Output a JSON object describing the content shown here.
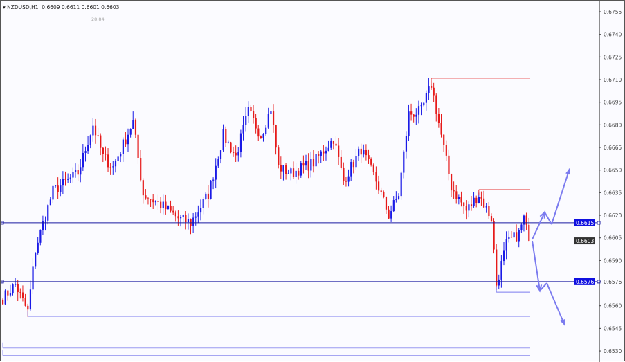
{
  "header": {
    "symbol": "NZDUSD,H1",
    "ohlc": "0.6609 0.6611 0.6601 0.6603",
    "indicator_value": "28.84"
  },
  "chart_data": {
    "type": "candlestick",
    "symbol": "NZDUSD",
    "timeframe": "H1",
    "ylim": [
      0.6525,
      0.6765
    ],
    "y_ticks": [
      "0.6755",
      "0.6740",
      "0.6725",
      "0.6710",
      "0.6695",
      "0.6680",
      "0.6665",
      "0.6650",
      "0.6635",
      "0.6620",
      "0.6605",
      "0.6590",
      "0.6576",
      "0.6560",
      "0.6545",
      "0.6530"
    ],
    "bar_count": 211,
    "close_path_by_bar": [
      [
        0,
        0.6565
      ],
      [
        5,
        0.6574
      ],
      [
        10,
        0.6556
      ],
      [
        13,
        0.6597
      ],
      [
        17,
        0.662
      ],
      [
        20,
        0.6636
      ],
      [
        30,
        0.6648
      ],
      [
        36,
        0.668
      ],
      [
        40,
        0.6659
      ],
      [
        44,
        0.6652
      ],
      [
        52,
        0.6682
      ],
      [
        56,
        0.6634
      ],
      [
        63,
        0.6627
      ],
      [
        70,
        0.6618
      ],
      [
        75,
        0.6615
      ],
      [
        82,
        0.6634
      ],
      [
        88,
        0.6673
      ],
      [
        93,
        0.6659
      ],
      [
        98,
        0.6689
      ],
      [
        103,
        0.6673
      ],
      [
        107,
        0.6691
      ],
      [
        110,
        0.6652
      ],
      [
        115,
        0.6648
      ],
      [
        124,
        0.6655
      ],
      [
        132,
        0.6671
      ],
      [
        136,
        0.6643
      ],
      [
        143,
        0.6664
      ],
      [
        149,
        0.6643
      ],
      [
        154,
        0.662
      ],
      [
        158,
        0.6634
      ],
      [
        162,
        0.6687
      ],
      [
        167,
        0.6689
      ],
      [
        171,
        0.6707
      ],
      [
        175,
        0.6673
      ],
      [
        179,
        0.6639
      ],
      [
        185,
        0.6623
      ],
      [
        190,
        0.6634
      ],
      [
        195,
        0.6618
      ],
      [
        197,
        0.6574
      ],
      [
        201,
        0.6601
      ],
      [
        206,
        0.6608
      ],
      [
        208,
        0.6618
      ],
      [
        210,
        0.6603
      ]
    ],
    "bull_color": "#1a1ae6",
    "bear_color": "#e61a1a",
    "current_price": {
      "label": "0.6603",
      "value": 0.6603,
      "color": "#333333"
    },
    "levels": [
      {
        "label": "0.6615",
        "value": 0.6615,
        "color": "#1a1aa0",
        "labeled": true
      },
      {
        "label": "0.6576",
        "value": 0.6576,
        "color": "#1a1aa0",
        "labeled": true
      },
      {
        "value": 0.6711,
        "color": "#e63030",
        "from_bar": 171
      },
      {
        "value": 0.6637,
        "color": "#e63030",
        "from_bar": 190
      },
      {
        "value": 0.6569,
        "color": "#7b7bef",
        "from_bar": 197
      },
      {
        "value": 0.6553,
        "color": "#7b7bef",
        "from_bar": 10
      },
      {
        "value": 0.6532,
        "color": "#9a9af0",
        "from_bar": 0
      },
      {
        "value": 0.6527,
        "color": "#9a9af0",
        "from_bar": 0
      }
    ],
    "scenario_arrows": {
      "color": "#7b7bef",
      "bullish": [
        0.6604,
        0.6622,
        0.6614,
        0.6651
      ],
      "bearish": [
        0.6603,
        0.657,
        0.6575,
        0.6547
      ]
    }
  }
}
